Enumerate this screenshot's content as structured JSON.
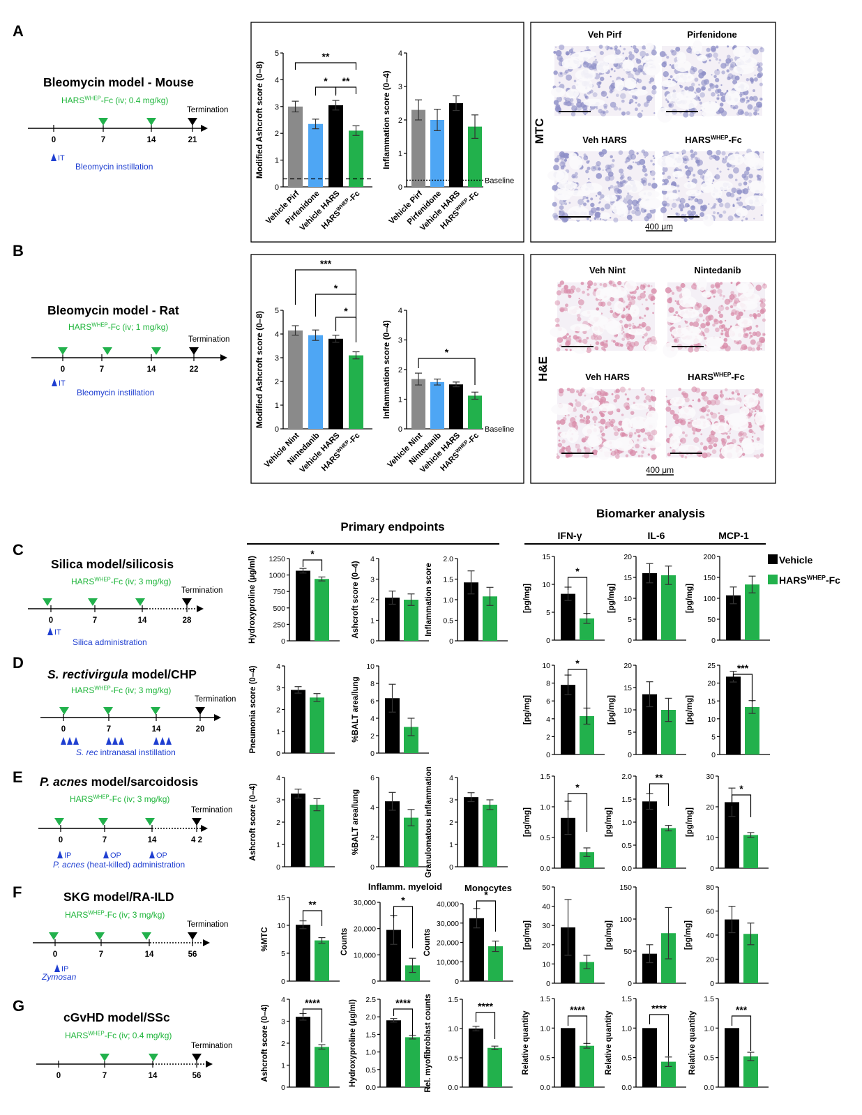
{
  "colors": {
    "grey": "#8a8a8a",
    "blue": "#4ea6f4",
    "black": "#000000",
    "green": "#22b14c",
    "green_text": "#1eb53a",
    "blue_text": "#1f3fd1",
    "mtc_tissue": "#8e8fc7",
    "he_tissue": "#d88aa8"
  },
  "panels": {
    "A": {
      "letter": "A",
      "title": "Bleomycin model - Mouse",
      "treatment": "HARS<sup>WHEP</sup>-Fc (iv; 0.4 mg/kg)",
      "termination": "Termination",
      "days": [
        "0",
        "7",
        "14",
        "21"
      ],
      "green_days": [
        "7",
        "14"
      ],
      "route": "IT",
      "instillation": "Bleomycin instillation",
      "stain": "MTC",
      "images": [
        "Veh Pirf",
        "Pirfenidone",
        "Veh HARS",
        "HARS<sup>WHEP</sup>-Fc"
      ],
      "scale": "400 μm"
    },
    "B": {
      "letter": "B",
      "title": "Bleomycin model - Rat",
      "treatment": "HARS<sup>WHEP</sup>-Fc (iv; 1 mg/kg)",
      "termination": "Termination",
      "days": [
        "0",
        "7",
        "14",
        "22"
      ],
      "route": "IT",
      "instillation": "Bleomycin instillation",
      "stain": "H&E",
      "images": [
        "Veh Nint",
        "Nintedanib",
        "Veh HARS",
        "HARS<sup>WHEP</sup>-Fc"
      ],
      "scale": "400 μm"
    },
    "C": {
      "letter": "C",
      "title": "Silica model/silicosis",
      "treatment": "HARS<sup>WHEP</sup>-Fc (iv; 3 mg/kg)",
      "termination": "Termination",
      "days": [
        "0",
        "7",
        "14",
        "28"
      ],
      "route": "IT",
      "instillation": "Silica administration"
    },
    "D": {
      "letter": "D",
      "title": "<i>S. rectivirgula</i> model/CHP",
      "treatment": "HARS<sup>WHEP</sup>-Fc  (iv; 3 mg/kg)",
      "termination": "Termination",
      "days": [
        "0",
        "7",
        "14",
        "20"
      ],
      "instillation": "<i>S. rec</i> intranasal instillation"
    },
    "E": {
      "letter": "E",
      "title": "<i>P. acnes</i> model/sarcoidosis",
      "treatment": "HARS<sup>WHEP</sup>-Fc (iv; 3 mg/kg)",
      "termination": "Termination",
      "days": [
        "0",
        "7",
        "14",
        "4 2"
      ],
      "routes": [
        "IP",
        "OP",
        "OP"
      ],
      "instillation": "<i>P. acnes</i> (heat-killed) administration"
    },
    "F": {
      "letter": "F",
      "title": "SKG model/RA-ILD",
      "treatment": "HARS<sup>WHEP</sup>-Fc (iv; 3 mg/kg)",
      "termination": "Termination",
      "days": [
        "0",
        "7",
        "14",
        "56"
      ],
      "route": "IP",
      "instillation": "Zymosan"
    },
    "G": {
      "letter": "G",
      "title": "cGvHD model/SSc",
      "treatment": "HARS<sup>WHEP</sup>-Fc (iv; 0.4 mg/kg)",
      "termination": "Termination",
      "days": [
        "0",
        "7",
        "14",
        "56"
      ]
    }
  },
  "section_headers": {
    "primary": "Primary endpoints",
    "biomarker": "Biomarker analysis",
    "ifn": "IFN-γ",
    "il6": "IL-6",
    "mcp1": "MCP-1"
  },
  "legend": {
    "vehicle": "Vehicle",
    "hars": "HARS<sup>WHEP</sup>-Fc"
  },
  "chart_data": [
    {
      "id": "A1",
      "type": "bar",
      "ylabel": "Modified Ashcroft score (0–8)",
      "ylim": [
        0,
        5
      ],
      "yticks": [
        "0",
        "1",
        "2",
        "3",
        "4",
        "5"
      ],
      "categories": [
        "Vehicle Pirf",
        "Pirfenidone",
        "Vehicle HARS",
        "HARS<sup>WHEP</sup>-Fc"
      ],
      "values": [
        3.0,
        2.35,
        3.05,
        2.1
      ],
      "errors": [
        0.2,
        0.18,
        0.18,
        0.18
      ],
      "colors": [
        "grey",
        "blue",
        "black",
        "green"
      ],
      "baseline": 0.3,
      "sig": [
        {
          "a": 0,
          "b": 3,
          "label": "**"
        },
        {
          "a": 1,
          "b": 2,
          "label": "*"
        },
        {
          "a": 2,
          "b": 3,
          "label": "**"
        }
      ]
    },
    {
      "id": "A2",
      "type": "bar",
      "ylabel": "Inflammation score (0–4)",
      "ylim": [
        0,
        4
      ],
      "yticks": [
        "0",
        "1",
        "2",
        "3",
        "4"
      ],
      "categories": [
        "Vehicle Pirf",
        "Pirfenidone",
        "Vehicle HARS",
        "HARS<sup>WHEP</sup>-Fc"
      ],
      "values": [
        2.3,
        2.0,
        2.5,
        1.8
      ],
      "errors": [
        0.3,
        0.32,
        0.22,
        0.35
      ],
      "colors": [
        "grey",
        "blue",
        "black",
        "green"
      ],
      "baseline": 0.2,
      "baseline_label": "Baseline"
    },
    {
      "id": "B1",
      "type": "bar",
      "ylabel": "Modified Ashcroft score (0–8)",
      "ylim": [
        0,
        5
      ],
      "yticks": [
        "0",
        "1",
        "2",
        "3",
        "4",
        "5"
      ],
      "categories": [
        "Vehicle Nint",
        "Nintedanib",
        "Vehicle HARS",
        "HARS<sup>WHEP</sup>-Fc"
      ],
      "values": [
        4.15,
        3.95,
        3.8,
        3.1
      ],
      "errors": [
        0.2,
        0.22,
        0.15,
        0.15
      ],
      "colors": [
        "grey",
        "blue",
        "black",
        "green"
      ],
      "sig": [
        {
          "a": 0,
          "b": 3,
          "label": "***"
        },
        {
          "a": 1,
          "b": 3,
          "label": "*"
        },
        {
          "a": 2,
          "b": 3,
          "label": "*"
        }
      ]
    },
    {
      "id": "B2",
      "type": "bar",
      "ylabel": "Inflammation score (0–4)",
      "ylim": [
        0,
        4
      ],
      "yticks": [
        "0",
        "1",
        "2",
        "3",
        "4"
      ],
      "categories": [
        "Vehicle Nint",
        "Nintedanib",
        "Vehicle HARS",
        "HARS<sup>WHEP</sup>-Fc"
      ],
      "values": [
        1.68,
        1.58,
        1.5,
        1.12
      ],
      "errors": [
        0.2,
        0.1,
        0.08,
        0.12
      ],
      "colors": [
        "grey",
        "blue",
        "black",
        "green"
      ],
      "baseline": 0.0,
      "baseline_label": "Baseline",
      "sig": [
        {
          "a": 0,
          "b": 3,
          "label": "*"
        }
      ]
    },
    {
      "id": "C1",
      "type": "bar",
      "ylabel": "Hydroxyproline (μg/ml)",
      "ylim": [
        0,
        1250
      ],
      "yticks": [
        "0",
        "250",
        "500",
        "750",
        "1000",
        "1250"
      ],
      "values": [
        1065,
        940
      ],
      "errors": [
        35,
        30
      ],
      "sig": [
        {
          "a": 0,
          "b": 1,
          "label": "*"
        }
      ]
    },
    {
      "id": "C2",
      "type": "bar",
      "ylabel": "Ashcroft  score (0–4)",
      "ylim": [
        0,
        4
      ],
      "yticks": [
        "0",
        "1",
        "2",
        "3",
        "4"
      ],
      "values": [
        2.1,
        2.0
      ],
      "errors": [
        0.32,
        0.28
      ]
    },
    {
      "id": "C3",
      "type": "bar",
      "ylabel": "Inflammation score",
      "ylim": [
        0,
        2
      ],
      "yticks": [
        "0",
        "0.5",
        "1.0",
        "1.5",
        "2.0"
      ],
      "values": [
        1.42,
        1.08
      ],
      "errors": [
        0.28,
        0.22
      ]
    },
    {
      "id": "C4",
      "type": "bar",
      "ylabel": "[pg/mg]",
      "ylim": [
        0,
        15
      ],
      "yticks": [
        "0",
        "5",
        "10",
        "15"
      ],
      "values": [
        8.3,
        3.9
      ],
      "errors": [
        1.2,
        0.9
      ],
      "sig": [
        {
          "a": 0,
          "b": 1,
          "label": "*"
        }
      ]
    },
    {
      "id": "C5",
      "type": "bar",
      "ylabel": "[pg/mg]",
      "ylim": [
        0,
        20
      ],
      "yticks": [
        "0",
        "5",
        "10",
        "15",
        "20"
      ],
      "values": [
        16.0,
        15.5
      ],
      "errors": [
        2.3,
        2.2
      ]
    },
    {
      "id": "C6",
      "type": "bar",
      "ylabel": "[pg/mg]",
      "ylim": [
        0,
        200
      ],
      "yticks": [
        "0",
        "50",
        "100",
        "150",
        "200"
      ],
      "values": [
        107,
        133
      ],
      "errors": [
        20,
        20
      ]
    },
    {
      "id": "D1",
      "type": "bar",
      "ylabel": "Pneumonia score (0–4)",
      "ylim": [
        0,
        4
      ],
      "yticks": [
        "0",
        "1",
        "2",
        "3",
        "4"
      ],
      "values": [
        2.9,
        2.55
      ],
      "errors": [
        0.15,
        0.18
      ]
    },
    {
      "id": "D2",
      "type": "bar",
      "ylabel": "%BALT area/lung",
      "ylim": [
        0,
        10
      ],
      "yticks": [
        "0",
        "2",
        "4",
        "6",
        "8",
        "10"
      ],
      "values": [
        6.3,
        3.0
      ],
      "errors": [
        1.6,
        1.0
      ]
    },
    {
      "id": "D3",
      "type": "bar",
      "ylabel": "[pg/mg]",
      "ylim": [
        0,
        10
      ],
      "yticks": [
        "0",
        "2",
        "4",
        "6",
        "8",
        "10"
      ],
      "values": [
        7.8,
        4.3
      ],
      "errors": [
        1.1,
        0.9
      ],
      "sig": [
        {
          "a": 0,
          "b": 1,
          "label": "*"
        }
      ]
    },
    {
      "id": "D4",
      "type": "bar",
      "ylabel": "[pg/mg]",
      "ylim": [
        0,
        20
      ],
      "yticks": [
        "0",
        "5",
        "10",
        "15",
        "20"
      ],
      "values": [
        13.5,
        10.0
      ],
      "errors": [
        2.8,
        2.6
      ]
    },
    {
      "id": "D5",
      "type": "bar",
      "ylabel": "[pg/mg]",
      "ylim": [
        0,
        25
      ],
      "yticks": [
        "0",
        "5",
        "10",
        "15",
        "20",
        "25"
      ],
      "values": [
        21.8,
        13.3
      ],
      "errors": [
        1.5,
        1.8
      ],
      "sig": [
        {
          "a": 0,
          "b": 1,
          "label": "***"
        }
      ]
    },
    {
      "id": "E1",
      "type": "bar",
      "ylabel": "Ashcroft  score (0–4)",
      "ylim": [
        0,
        4
      ],
      "yticks": [
        "0",
        "1",
        "2",
        "3",
        "4"
      ],
      "values": [
        3.28,
        2.78
      ],
      "errors": [
        0.2,
        0.27
      ]
    },
    {
      "id": "E2",
      "type": "bar",
      "ylabel": "%BALT area/lung",
      "ylim": [
        0,
        6
      ],
      "yticks": [
        "0",
        "2",
        "4",
        "6"
      ],
      "values": [
        4.4,
        3.3
      ],
      "errors": [
        0.6,
        0.55
      ]
    },
    {
      "id": "E3",
      "type": "bar",
      "ylabel": "Granulomatous inflammation",
      "ylim": [
        0,
        4
      ],
      "yticks": [
        "0",
        "1",
        "2",
        "3",
        "4"
      ],
      "values": [
        3.12,
        2.78
      ],
      "errors": [
        0.2,
        0.22
      ]
    },
    {
      "id": "E4",
      "type": "bar",
      "ylabel": "[pg/mg]",
      "ylim": [
        0,
        1.5
      ],
      "yticks": [
        "0.0",
        "0.5",
        "1.0",
        "1.5"
      ],
      "values": [
        0.82,
        0.26
      ],
      "errors": [
        0.27,
        0.07
      ],
      "sig": [
        {
          "a": 0,
          "b": 1,
          "label": "*"
        }
      ]
    },
    {
      "id": "E5",
      "type": "bar",
      "ylabel": "[pg/mg]",
      "ylim": [
        0,
        2
      ],
      "yticks": [
        "0.0",
        "0.5",
        "1.0",
        "1.5",
        "2.0"
      ],
      "values": [
        1.45,
        0.87
      ],
      "errors": [
        0.17,
        0.06
      ],
      "sig": [
        {
          "a": 0,
          "b": 1,
          "label": "**"
        }
      ]
    },
    {
      "id": "E6",
      "type": "bar",
      "ylabel": "[pg/mg]",
      "ylim": [
        0,
        30
      ],
      "yticks": [
        "0",
        "10",
        "20",
        "30"
      ],
      "values": [
        21.5,
        10.8
      ],
      "errors": [
        4.6,
        0.8
      ],
      "sig": [
        {
          "a": 0,
          "b": 1,
          "label": "*"
        }
      ]
    },
    {
      "id": "F1",
      "type": "bar",
      "ylabel": "%MTC",
      "ylim": [
        0,
        15
      ],
      "yticks": [
        "0",
        "5",
        "10",
        "15"
      ],
      "values": [
        10.1,
        7.3
      ],
      "errors": [
        0.7,
        0.5
      ],
      "sig": [
        {
          "a": 0,
          "b": 1,
          "label": "**"
        }
      ]
    },
    {
      "id": "F2",
      "type": "bar",
      "title": "Inflamm. myeloid",
      "ylabel": "Counts",
      "ylim": [
        0,
        30000
      ],
      "yticks": [
        "0",
        "10,000",
        "20,000",
        "30,000"
      ],
      "values": [
        19500,
        6000
      ],
      "errors": [
        5500,
        2700
      ],
      "sig": [
        {
          "a": 0,
          "b": 1,
          "label": "*"
        }
      ]
    },
    {
      "id": "F3",
      "type": "bar",
      "title": "Monocytes",
      "ylabel": "Counts",
      "ylim": [
        0,
        40000
      ],
      "yticks": [
        "0",
        "10,000",
        "20,000",
        "30,000",
        "40,000"
      ],
      "values": [
        32500,
        18000
      ],
      "errors": [
        5000,
        2700
      ],
      "sig": [
        {
          "a": 0,
          "b": 1,
          "label": "*"
        }
      ]
    },
    {
      "id": "F4",
      "type": "bar",
      "ylabel": "[pg/mg]",
      "ylim": [
        0,
        50
      ],
      "yticks": [
        "0",
        "10",
        "20",
        "30",
        "40",
        "50"
      ],
      "values": [
        29,
        11
      ],
      "errors": [
        14.5,
        3.5
      ]
    },
    {
      "id": "F5",
      "type": "bar",
      "ylabel": "[pg/mg]",
      "ylim": [
        0,
        150
      ],
      "yticks": [
        "0",
        "50",
        "100",
        "150"
      ],
      "values": [
        46,
        78
      ],
      "errors": [
        14,
        40
      ]
    },
    {
      "id": "F6",
      "type": "bar",
      "ylabel": "[pg/mg]",
      "ylim": [
        0,
        80
      ],
      "yticks": [
        "0",
        "20",
        "40",
        "60",
        "80"
      ],
      "values": [
        53,
        41
      ],
      "errors": [
        11,
        9
      ]
    },
    {
      "id": "G1",
      "type": "bar",
      "ylabel": "Ashcroft  score (0–4)",
      "ylim": [
        0,
        4
      ],
      "yticks": [
        "0",
        "1",
        "2",
        "3",
        "4"
      ],
      "values": [
        3.2,
        1.83
      ],
      "errors": [
        0.15,
        0.1
      ],
      "sig": [
        {
          "a": 0,
          "b": 1,
          "label": "****"
        }
      ]
    },
    {
      "id": "G2",
      "type": "bar",
      "ylabel": "Hydroxyproline (μg/ml)",
      "ylim": [
        0,
        2.5
      ],
      "yticks": [
        "0.0",
        "0.5",
        "1.0",
        "1.5",
        "2.0",
        "2.5"
      ],
      "values": [
        1.9,
        1.42
      ],
      "errors": [
        0.05,
        0.05
      ],
      "sig": [
        {
          "a": 0,
          "b": 1,
          "label": "****"
        }
      ]
    },
    {
      "id": "G3",
      "type": "bar",
      "ylabel": "Rel. myofibroblast counts",
      "ylim": [
        0,
        1.5
      ],
      "yticks": [
        "0.0",
        "0.5",
        "1.0",
        "1.5"
      ],
      "values": [
        1.0,
        0.67
      ],
      "errors": [
        0.04,
        0.03
      ],
      "sig": [
        {
          "a": 0,
          "b": 1,
          "label": "****"
        }
      ]
    },
    {
      "id": "G4",
      "type": "bar",
      "ylabel": "Relative quantity",
      "ylim": [
        0,
        1.5
      ],
      "yticks": [
        "0.0",
        "0.5",
        "1.0",
        "1.5"
      ],
      "values": [
        1.0,
        0.7
      ],
      "errors": [
        0.0,
        0.04
      ],
      "sig": [
        {
          "a": 0,
          "b": 1,
          "label": "****"
        }
      ]
    },
    {
      "id": "G5",
      "type": "bar",
      "ylabel": "Relative quantity",
      "ylim": [
        0,
        1.5
      ],
      "yticks": [
        "0.0",
        "0.5",
        "1.0",
        "1.5"
      ],
      "values": [
        1.0,
        0.43
      ],
      "errors": [
        0.0,
        0.08
      ],
      "sig": [
        {
          "a": 0,
          "b": 1,
          "label": "****"
        }
      ]
    },
    {
      "id": "G6",
      "type": "bar",
      "ylabel": "Relative quantity",
      "ylim": [
        0,
        1.5
      ],
      "yticks": [
        "0.0",
        "0.5",
        "1.0",
        "1.5"
      ],
      "values": [
        1.0,
        0.52
      ],
      "errors": [
        0.0,
        0.07
      ],
      "sig": [
        {
          "a": 0,
          "b": 1,
          "label": "***"
        }
      ]
    }
  ]
}
